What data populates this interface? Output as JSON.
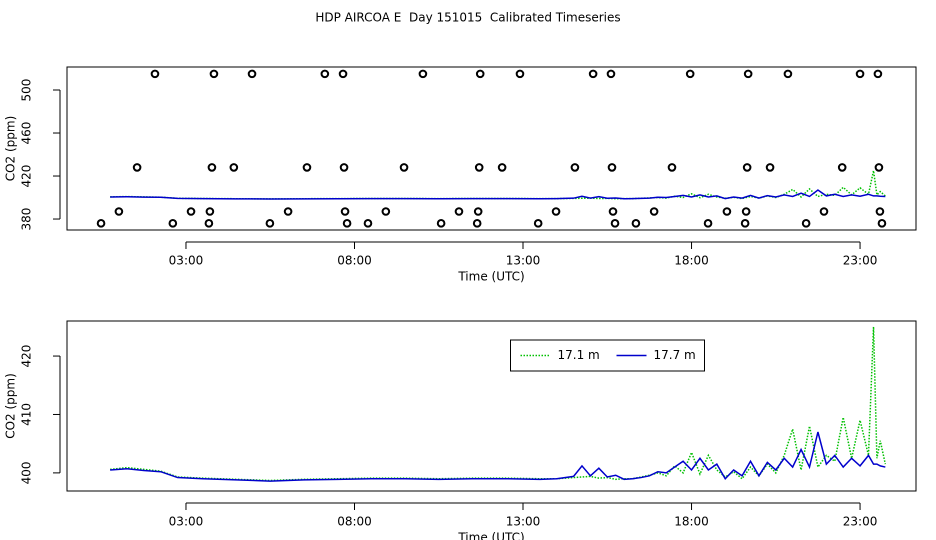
{
  "chart_data": [
    {
      "type": "line",
      "title": "HDP AIRCOA E  Day 151015  Calibrated Timeseries",
      "xlabel": "Time (UTC)",
      "ylabel": "CO2 (ppm)",
      "xlim": [
        -0.53,
        24.66
      ],
      "ylim": [
        369.8,
        521.4
      ],
      "xticks": [
        {
          "value": 3,
          "label": "03:00"
        },
        {
          "value": 8,
          "label": "08:00"
        },
        {
          "value": 13,
          "label": "13:00"
        },
        {
          "value": 18,
          "label": "18:00"
        },
        {
          "value": 23,
          "label": "23:00"
        }
      ],
      "yticks": [
        380,
        420,
        460,
        500
      ],
      "x": [
        0.75,
        1.25,
        1.75,
        2.25,
        2.75,
        3.5,
        4.5,
        5.5,
        6.5,
        7.5,
        8.5,
        9.5,
        10.5,
        11.5,
        12.5,
        13.5,
        14.0,
        14.5,
        14.75,
        15.0,
        15.25,
        15.5,
        15.75,
        16.0,
        16.25,
        16.5,
        16.75,
        17.0,
        17.25,
        17.5,
        17.75,
        18.0,
        18.25,
        18.5,
        18.75,
        19.0,
        19.25,
        19.5,
        19.75,
        20.0,
        20.25,
        20.5,
        20.75,
        21.0,
        21.25,
        21.5,
        21.75,
        22.0,
        22.25,
        22.5,
        22.75,
        23.0,
        23.25,
        23.4,
        23.5,
        23.6,
        23.75
      ],
      "series": [
        {
          "type": "scatter",
          "color": "#000000",
          "x": [
            0.48,
            1.01,
            1.55,
            2.08,
            2.61,
            3.15,
            3.68,
            3.71,
            3.77,
            3.83,
            4.42,
            4.96,
            5.49,
            6.03,
            6.59,
            7.12,
            7.66,
            7.69,
            7.72,
            7.78,
            8.4,
            8.93,
            9.47,
            10.03,
            10.57,
            11.1,
            11.64,
            11.67,
            11.7,
            11.73,
            12.38,
            12.91,
            13.45,
            13.98,
            14.54,
            15.08,
            15.61,
            15.64,
            15.67,
            15.73,
            16.35,
            16.89,
            17.42,
            17.96,
            18.49,
            19.05,
            19.59,
            19.62,
            19.65,
            19.68,
            20.33,
            20.86,
            21.4,
            21.93,
            22.47,
            23.0,
            23.53,
            23.56,
            23.59,
            23.65
          ],
          "values": [
            376,
            387,
            428,
            515,
            376,
            387,
            376,
            387,
            428,
            515,
            428,
            515,
            376,
            387,
            428,
            515,
            515,
            428,
            387,
            376,
            376,
            387,
            428,
            515,
            376,
            387,
            376,
            387,
            428,
            515,
            428,
            515,
            376,
            387,
            428,
            515,
            515,
            428,
            387,
            376,
            376,
            387,
            428,
            515,
            376,
            387,
            376,
            387,
            428,
            515,
            428,
            515,
            376,
            387,
            428,
            515,
            515,
            428,
            387,
            376
          ]
        },
        {
          "type": "line",
          "color": "#00c000",
          "linestyle": "dotted",
          "values": [
            400.6,
            400.9,
            400.6,
            400.3,
            399.3,
            399.1,
            398.9,
            398.7,
            398.9,
            399.0,
            399.1,
            399.1,
            399.0,
            399.1,
            399.1,
            399.0,
            399.0,
            399.2,
            399.3,
            399.4,
            399.1,
            399.2,
            398.9,
            399.0,
            399.0,
            399.3,
            399.6,
            400.0,
            399.5,
            401.2,
            400.0,
            403.5,
            399.8,
            403.0,
            400.5,
            399.3,
            400.2,
            399.0,
            401.0,
            399.5,
            401.5,
            400.0,
            403.0,
            407.5,
            400.5,
            408.0,
            401.0,
            403.0,
            402.0,
            409.5,
            402.5,
            409.0,
            403.0,
            425.0,
            402.5,
            405.5,
            401.5
          ]
        },
        {
          "type": "line",
          "color": "#0000cc",
          "linestyle": "solid",
          "values": [
            400.5,
            400.7,
            400.4,
            400.2,
            399.2,
            399.0,
            398.8,
            398.6,
            398.8,
            398.9,
            399.0,
            399.0,
            398.9,
            399.0,
            399.0,
            398.9,
            399.0,
            399.4,
            401.2,
            399.5,
            400.8,
            399.3,
            399.6,
            398.9,
            399.0,
            399.2,
            399.5,
            400.2,
            400.0,
            401.0,
            402.0,
            400.5,
            402.5,
            400.5,
            401.5,
            399.0,
            400.5,
            399.5,
            402.0,
            399.5,
            401.8,
            400.5,
            402.5,
            401.0,
            404.0,
            401.0,
            407.0,
            401.5,
            403.0,
            401.0,
            402.5,
            401.2,
            403.0,
            401.5,
            401.5,
            401.2,
            401.0
          ]
        }
      ]
    },
    {
      "type": "line",
      "xlabel": "Time (UTC)",
      "ylabel": "CO2 (ppm)",
      "xlim": [
        -0.53,
        24.66
      ],
      "ylim": [
        396.9,
        426.0
      ],
      "xticks": [
        {
          "value": 3,
          "label": "03:00"
        },
        {
          "value": 8,
          "label": "08:00"
        },
        {
          "value": 13,
          "label": "13:00"
        },
        {
          "value": 18,
          "label": "18:00"
        },
        {
          "value": 23,
          "label": "23:00"
        }
      ],
      "yticks": [
        400,
        410,
        420
      ],
      "legend": "upper-center",
      "x": [
        0.75,
        1.25,
        1.75,
        2.25,
        2.75,
        3.5,
        4.5,
        5.5,
        6.5,
        7.5,
        8.5,
        9.5,
        10.5,
        11.5,
        12.5,
        13.5,
        14.0,
        14.5,
        14.75,
        15.0,
        15.25,
        15.5,
        15.75,
        16.0,
        16.25,
        16.5,
        16.75,
        17.0,
        17.25,
        17.5,
        17.75,
        18.0,
        18.25,
        18.5,
        18.75,
        19.0,
        19.25,
        19.5,
        19.75,
        20.0,
        20.25,
        20.5,
        20.75,
        21.0,
        21.25,
        21.5,
        21.75,
        22.0,
        22.25,
        22.5,
        22.75,
        23.0,
        23.25,
        23.4,
        23.5,
        23.6,
        23.75
      ],
      "series": [
        {
          "type": "line",
          "name": "17.1 m",
          "color": "#00c000",
          "linestyle": "dotted",
          "values": [
            400.6,
            400.9,
            400.6,
            400.3,
            399.3,
            399.1,
            398.9,
            398.7,
            398.9,
            399.0,
            399.1,
            399.1,
            399.0,
            399.1,
            399.1,
            399.0,
            399.0,
            399.2,
            399.3,
            399.4,
            399.1,
            399.2,
            398.9,
            399.0,
            399.0,
            399.3,
            399.6,
            400.0,
            399.5,
            401.2,
            400.0,
            403.5,
            399.8,
            403.0,
            400.5,
            399.3,
            400.2,
            399.0,
            401.0,
            399.5,
            401.5,
            400.0,
            403.0,
            407.5,
            400.5,
            408.0,
            401.0,
            403.0,
            402.0,
            409.5,
            402.5,
            409.0,
            403.0,
            425.0,
            402.5,
            405.5,
            401.5
          ]
        },
        {
          "type": "line",
          "name": "17.7 m",
          "color": "#0000cc",
          "linestyle": "solid",
          "values": [
            400.5,
            400.7,
            400.4,
            400.2,
            399.2,
            399.0,
            398.8,
            398.6,
            398.8,
            398.9,
            399.0,
            399.0,
            398.9,
            399.0,
            399.0,
            398.9,
            399.0,
            399.4,
            401.2,
            399.5,
            400.8,
            399.3,
            399.6,
            398.9,
            399.0,
            399.2,
            399.5,
            400.2,
            400.0,
            401.0,
            402.0,
            400.5,
            402.5,
            400.5,
            401.5,
            399.0,
            400.5,
            399.5,
            402.0,
            399.5,
            401.8,
            400.5,
            402.5,
            401.0,
            404.0,
            401.0,
            407.0,
            401.5,
            403.0,
            401.0,
            402.5,
            401.2,
            403.0,
            401.5,
            401.5,
            401.2,
            401.0
          ]
        }
      ]
    }
  ]
}
